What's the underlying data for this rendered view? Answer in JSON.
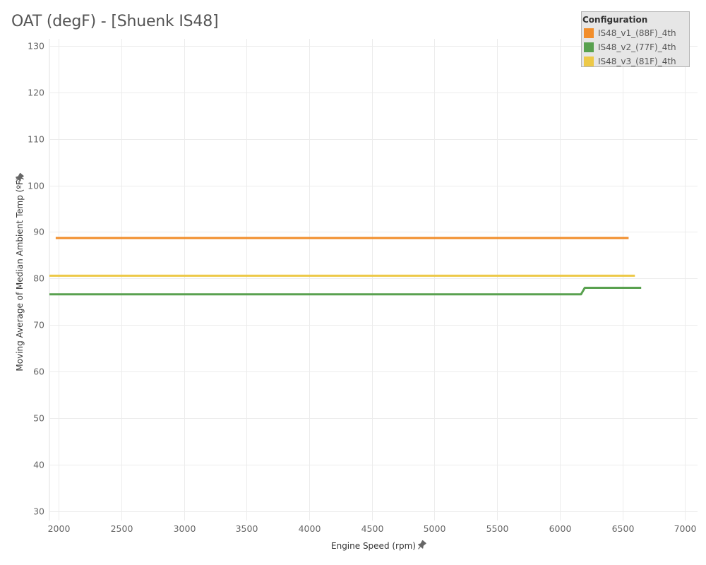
{
  "page": {
    "title": "OAT (degF) - [Shuenk IS48]"
  },
  "legend": {
    "title": "Configuration"
  },
  "chart_data": {
    "type": "line",
    "title": "OAT (degF) - [Shuenk IS48]",
    "xlabel": "Engine Speed (rpm)",
    "ylabel": "Moving Average of Median Ambient Temp (ºF)",
    "xlim": [
      1925,
      7100
    ],
    "ylim": [
      28,
      131.5
    ],
    "x_ticks": [
      2000,
      2500,
      3000,
      3500,
      4000,
      4500,
      5000,
      5500,
      6000,
      6500,
      7000
    ],
    "y_ticks": [
      30,
      40,
      50,
      60,
      70,
      80,
      90,
      100,
      110,
      120,
      130
    ],
    "grid": true,
    "legend_position": "top-right",
    "series": [
      {
        "name": "IS48_v1_(88F)_4th",
        "color": "#f28e2b",
        "points": [
          [
            1975,
            88.7
          ],
          [
            6550,
            88.7
          ]
        ]
      },
      {
        "name": "IS48_v2_(77F)_4th",
        "color": "#59a14f",
        "points": [
          [
            1925,
            76.6
          ],
          [
            6170,
            76.6
          ],
          [
            6200,
            78.0
          ],
          [
            6650,
            78.0
          ]
        ]
      },
      {
        "name": "IS48_v3_(81F)_4th",
        "color": "#edc948",
        "points": [
          [
            1925,
            80.6
          ],
          [
            6600,
            80.6
          ]
        ]
      }
    ]
  }
}
